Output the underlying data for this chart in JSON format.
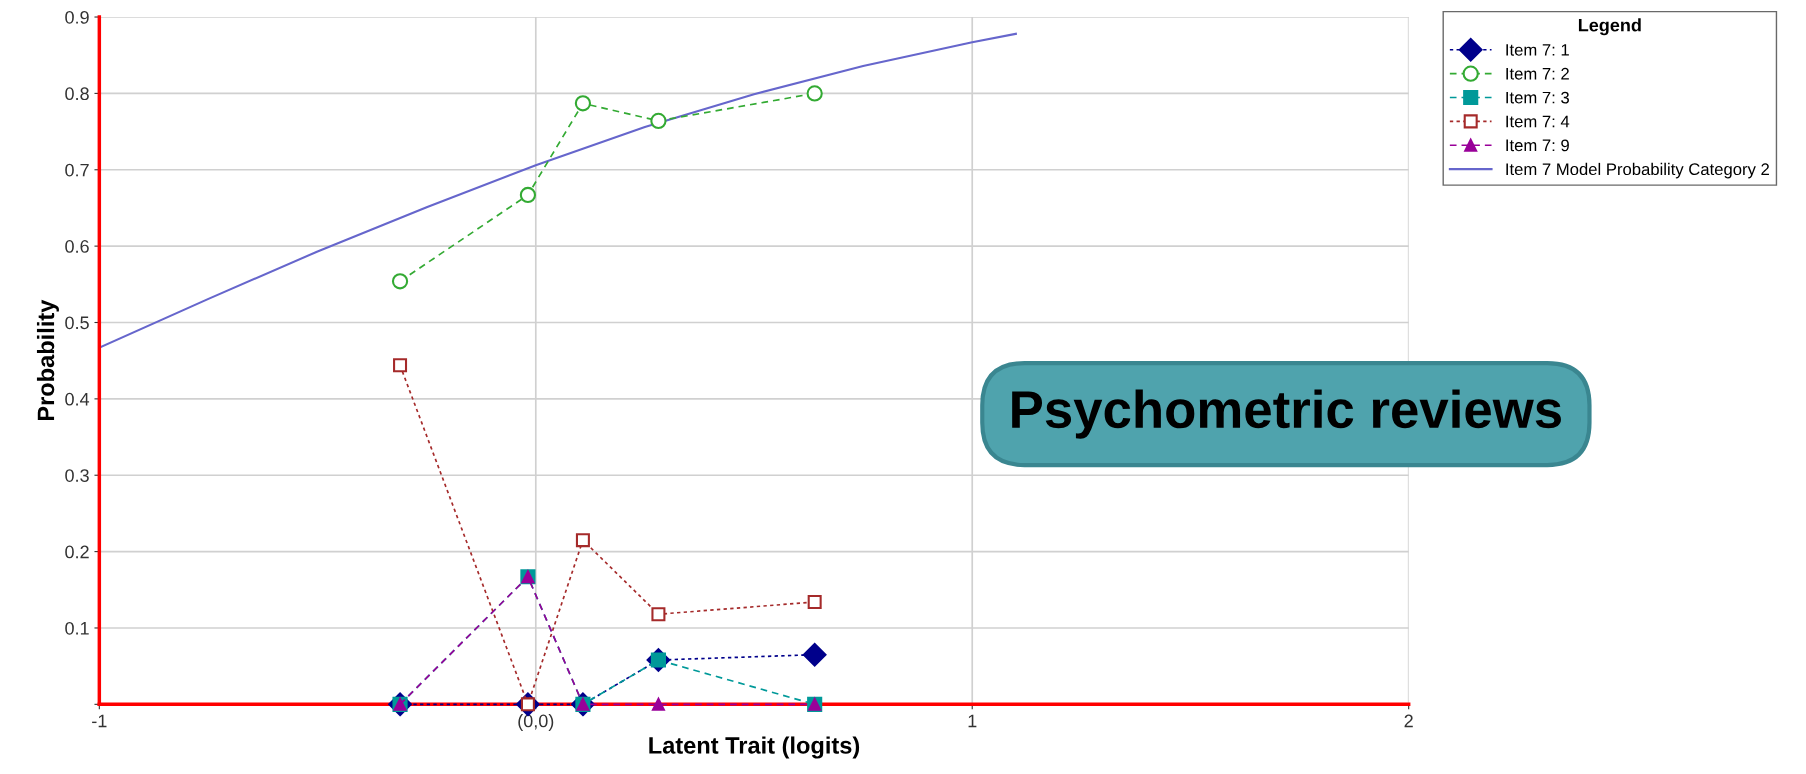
{
  "chart_data": {
    "type": "line",
    "xlabel": "Latent Trait (logits)",
    "ylabel": "Probability",
    "legend_title": "Legend",
    "series": [
      {
        "name": "Item 7: 1",
        "color": "#00008b",
        "marker": "diamond",
        "line_style": "dotted",
        "x": [
          -0.311,
          -0.018,
          0.108,
          0.281,
          0.639
        ],
        "values": [
          0,
          0,
          0,
          0.058,
          0.065
        ]
      },
      {
        "name": "Item 7: 2",
        "color": "#33aa33",
        "marker": "circle",
        "line_style": "dashed",
        "x": [
          -0.311,
          -0.018,
          0.108,
          0.281,
          0.639
        ],
        "values": [
          0.554,
          0.667,
          0.787,
          0.764,
          0.8
        ]
      },
      {
        "name": "Item 7: 3",
        "color": "#009999",
        "marker": "square",
        "line_style": "dashed",
        "x": [
          -0.311,
          -0.018,
          0.108,
          0.281,
          0.639
        ],
        "values": [
          0,
          0.167,
          0,
          0.058,
          0
        ]
      },
      {
        "name": "Item 7: 4",
        "color": "#a52a2a",
        "marker": "square",
        "line_style": "dotted",
        "x": [
          -0.311,
          -0.018,
          0.108,
          0.281,
          0.639
        ],
        "values": [
          0.444,
          0,
          0.215,
          0.118,
          0.134
        ]
      },
      {
        "name": "Item 7: 9",
        "color": "#990099",
        "marker": "triangle",
        "line_style": "dashed",
        "x": [
          -0.311,
          -0.018,
          0.108,
          0.281,
          0.639
        ],
        "values": [
          0,
          0.167,
          0,
          0,
          0
        ]
      },
      {
        "name": "Item 7 Model Probability Category 2",
        "color": "#6666cc",
        "marker": "none",
        "line_style": "solid",
        "x": [
          -1,
          -0.75,
          -0.5,
          -0.25,
          0,
          0.25,
          0.5,
          0.75,
          1.0,
          1.1
        ],
        "values": [
          0.467,
          0.531,
          0.593,
          0.651,
          0.706,
          0.756,
          0.799,
          0.836,
          0.867,
          0.878
        ]
      }
    ],
    "xlim": [
      -1,
      2
    ],
    "xticks": [
      -1,
      {
        "value": 0,
        "label": "(0,0)"
      },
      1,
      2
    ],
    "ylim": [
      0,
      0.9
    ],
    "yticks": [
      {
        "value": 0,
        "label": null
      },
      0.1,
      0.2,
      0.3,
      0.4,
      0.5,
      0.6,
      0.7,
      0.8,
      0.9
    ],
    "grid": true,
    "legend": "top right",
    "annotations": [
      "Psychometric reviews"
    ]
  }
}
